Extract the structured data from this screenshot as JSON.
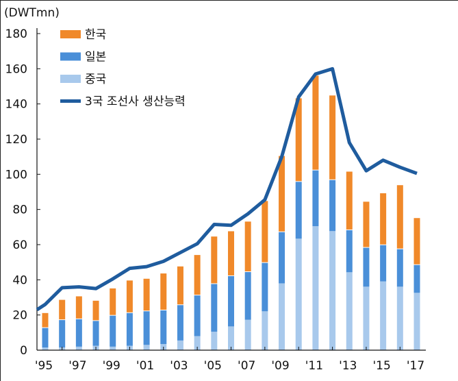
{
  "chart_data": {
    "type": "bar",
    "stacked": true,
    "unit_label": "(DWTmn)",
    "categories": [
      "'95",
      "'96",
      "'97",
      "'98",
      "'99",
      "'00",
      "'01",
      "'02",
      "'03",
      "'04",
      "'05",
      "'06",
      "'07",
      "'08",
      "'09",
      "'10",
      "'11",
      "'12",
      "'13",
      "'14",
      "'15",
      "'16",
      "'17"
    ],
    "tick_labels": [
      "'95",
      "'97",
      "'99",
      "'01",
      "'03",
      "'05",
      "'07",
      "'09",
      "'11",
      "'13",
      "'15",
      "'17"
    ],
    "ylim": [
      0,
      180
    ],
    "yticks": [
      0,
      20,
      40,
      60,
      80,
      100,
      120,
      140,
      160,
      180
    ],
    "grid": false,
    "legend_position": "top-left",
    "series": [
      {
        "name": "중국",
        "kind": "bar",
        "color": "#A8C9EC",
        "values": [
          1.5,
          1.5,
          2,
          2.5,
          2,
          2.5,
          3,
          3.5,
          5.5,
          8,
          10.5,
          13.5,
          17.3,
          22.1,
          38,
          63.4,
          70.5,
          67.7,
          44.3,
          36.1,
          39.1,
          36.1,
          32.6
        ]
      },
      {
        "name": "일본",
        "kind": "bar",
        "color": "#4A8FD8",
        "values": [
          11.5,
          16,
          16,
          14.5,
          18,
          19,
          19.5,
          19.5,
          20.5,
          23.5,
          27.5,
          29,
          27.5,
          27.9,
          29.5,
          32.7,
          32.1,
          29.4,
          24.3,
          22.5,
          21,
          21.7,
          16.2
        ]
      },
      {
        "name": "한국",
        "kind": "bar",
        "color": "#F0892A",
        "values": [
          8.5,
          11.5,
          13,
          11.5,
          15.5,
          18.5,
          18.5,
          21,
          22,
          23,
          27,
          25.5,
          28.7,
          35.2,
          43.3,
          47.5,
          53.9,
          48.1,
          33.3,
          26.2,
          29.5,
          36.4,
          26.7
        ]
      },
      {
        "name": "3국 조선사 생산능력",
        "kind": "line",
        "color": "#1F5C9E",
        "values": [
          26,
          35.5,
          36,
          35,
          40.5,
          46.5,
          47.5,
          50.5,
          55.5,
          60.5,
          71.5,
          71,
          77.5,
          85.5,
          110,
          144,
          157,
          160,
          118,
          102,
          108,
          104,
          100.5
        ]
      }
    ]
  }
}
